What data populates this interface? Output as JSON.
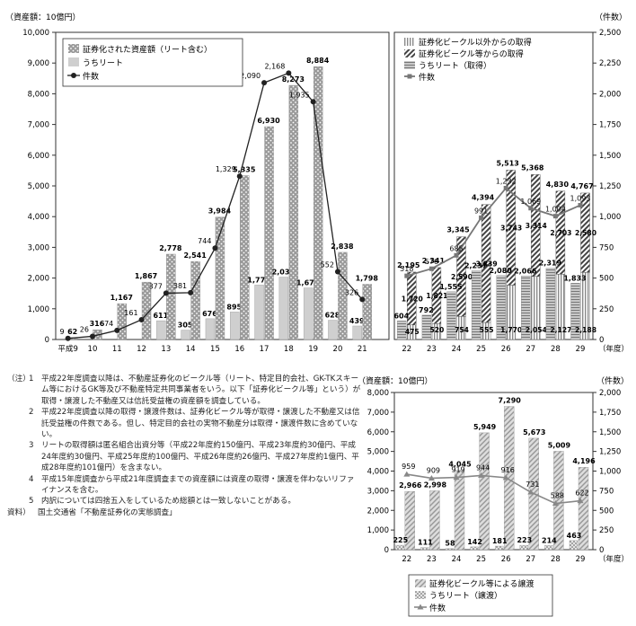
{
  "chart_data": [
    {
      "type": "bar",
      "title": "",
      "y_left_label": "（資産額：10億円）",
      "y_right_label": "（件数）",
      "ylim": [
        0,
        10000
      ],
      "y2lim": [
        0,
        2500
      ],
      "yticks": [
        "0",
        "1,000",
        "2,000",
        "3,000",
        "4,000",
        "5,000",
        "6,000",
        "7,000",
        "8,000",
        "9,000",
        "10,000"
      ],
      "y2ticks": [
        "0",
        "250",
        "500",
        "750",
        "1,000",
        "1,250",
        "1,500",
        "1,750",
        "2,000",
        "2,250",
        "2,500"
      ],
      "categories": [
        "平成9",
        "10",
        "11",
        "12",
        "13",
        "14",
        "15",
        "16",
        "17",
        "18",
        "19",
        "20",
        "21"
      ],
      "series": [
        {
          "name": "証券化された資産額（リート含む）",
          "kind": "bar",
          "values": [
            62,
            316,
            1167,
            1867,
            2778,
            2541,
            3984,
            5335,
            6930,
            8273,
            8884,
            2838,
            1798
          ],
          "labels": [
            "62",
            "316",
            "1,167",
            "1,867",
            "2,778",
            "2,541",
            "3,984",
            "5,335",
            "6,930",
            "8,273",
            "8,884",
            "2,838",
            "1,798"
          ]
        },
        {
          "name": "うちリート",
          "kind": "bar",
          "values": [
            0,
            0,
            0,
            0,
            611,
            305,
            676,
            895,
            1772,
            2031,
            1679,
            628,
            439
          ],
          "labels": [
            "",
            "",
            "",
            "",
            "611",
            "305",
            "676",
            "895",
            "1,772",
            "2,031",
            "1,679",
            "628",
            "439"
          ]
        },
        {
          "name": "件数",
          "kind": "line",
          "axis": "right",
          "values": [
            9,
            26,
            74,
            161,
            377,
            381,
            744,
            1329,
            2090,
            2168,
            1935,
            552,
            326
          ],
          "labels": [
            "9",
            "26",
            "74",
            "161",
            "377",
            "381",
            "744",
            "1,329",
            "2,090",
            "2,168",
            "1,935",
            "552",
            "326"
          ]
        }
      ]
    },
    {
      "type": "bar",
      "title": "",
      "ylim": [
        0,
        10000
      ],
      "y2lim": [
        0,
        2500
      ],
      "categories": [
        "22",
        "23",
        "24",
        "25",
        "26",
        "27",
        "28",
        "29"
      ],
      "x_unit": "（年度）",
      "series": [
        {
          "name": "証券化ビークル以外からの取得",
          "kind": "stack",
          "values": [
            475,
            520,
            754,
            555,
            1770,
            2054,
            2127,
            2188
          ],
          "labels": [
            "475",
            "520",
            "754",
            "555",
            "1,770",
            "2,054",
            "2,127",
            "2,188"
          ]
        },
        {
          "name": "証券化ビークル等からの取得",
          "kind": "stack",
          "values": [
            1720,
            1821,
            2590,
            3839,
            3743,
            3314,
            2703,
            2580
          ],
          "labels": [
            "1,720",
            "1,821",
            "2,590",
            "3,839",
            "3,743",
            "3,314",
            "2,703",
            "2,580"
          ]
        },
        {
          "name": "うちリート（取得）",
          "kind": "bar",
          "values": [
            604,
            792,
            1555,
            2237,
            2080,
            2066,
            2319,
            1833
          ],
          "labels": [
            "604",
            "792",
            "1,555",
            "2,237",
            "2,080",
            "2,066",
            "2,319",
            "1,833"
          ]
        },
        {
          "name": "件数",
          "kind": "line",
          "axis": "right",
          "values": [
            518,
            576,
            685,
            991,
            1232,
            1069,
            1004,
            1093
          ],
          "labels": [
            "518",
            "576",
            "685",
            "991",
            "1,232",
            "1,069",
            "1,004",
            "1,093"
          ]
        }
      ],
      "totals": [
        "2,195",
        "2,341",
        "3,345",
        "4,394",
        "5,513",
        "5,368",
        "4,830",
        "4,767"
      ]
    },
    {
      "type": "bar",
      "title": "",
      "y_left_label": "（資産額：10億円）",
      "y_right_label": "（件数）",
      "ylim": [
        0,
        8000
      ],
      "y2lim": [
        0,
        2000
      ],
      "yticks": [
        "0",
        "1,000",
        "2,000",
        "3,000",
        "4,000",
        "5,000",
        "6,000",
        "7,000",
        "8,000"
      ],
      "y2ticks": [
        "0",
        "250",
        "500",
        "750",
        "1,000",
        "1,250",
        "1,500",
        "1,750",
        "2,000"
      ],
      "categories": [
        "22",
        "23",
        "24",
        "25",
        "26",
        "27",
        "28",
        "29"
      ],
      "x_unit": "（年度）",
      "series": [
        {
          "name": "証券化ビークル等による譲渡",
          "kind": "bar",
          "values": [
            2966,
            2998,
            4045,
            5949,
            7290,
            5673,
            5009,
            4196
          ],
          "labels": [
            "2,966",
            "2,998",
            "4,045",
            "5,949",
            "7,290",
            "5,673",
            "5,009",
            "4,196"
          ]
        },
        {
          "name": "うちリート（譲渡）",
          "kind": "bar",
          "values": [
            225,
            111,
            58,
            142,
            181,
            223,
            214,
            463
          ],
          "labels": [
            "225",
            "111",
            "58",
            "142",
            "181",
            "223",
            "214",
            "463"
          ]
        },
        {
          "name": "件数",
          "kind": "line",
          "axis": "right",
          "values": [
            959,
            909,
            919,
            944,
            916,
            731,
            588,
            622
          ],
          "labels": [
            "959",
            "909",
            "919",
            "944",
            "916",
            "731",
            "588",
            "622"
          ]
        }
      ]
    }
  ],
  "notes": [
    {
      "k": "（注）",
      "n": "1",
      "t": "平成22年度調査以降は、不動産証券化のビークル等（リート、特定目的会社、GK-TKスキーム等におけるGK等及び不動産特定共同事業者をいう。以下「証券化ビークル等」という）が取得・譲渡した不動産又は信託受益権の資産額を調査している。"
    },
    {
      "k": "",
      "n": "2",
      "t": "平成22年度調査以降の取得・譲渡件数は、証券化ビークル等が取得・譲渡した不動産又は信託受益権の件数である。但し、特定目的会社の実物不動産分は取得・譲渡件数に含めていない。"
    },
    {
      "k": "",
      "n": "3",
      "t": "リートの取得額は匿名組合出資分等（平成22年度約150億円、平成23年度約30億円、平成24年度約30億円、平成25年度約100億円、平成26年度約26億円、平成27年度約1億円、平成28年度約101億円）を含まない。"
    },
    {
      "k": "",
      "n": "4",
      "t": "平成15年度調査から平成21年度調査までの資産額には資産の取得・譲渡を伴わないリファイナンスを含む。"
    },
    {
      "k": "",
      "n": "5",
      "t": "内訳については四捨五入をしているため総額とは一致しないことがある。"
    },
    {
      "k": "資料）",
      "n": "",
      "t": "国土交通省「不動産証券化の実態調査」"
    }
  ]
}
